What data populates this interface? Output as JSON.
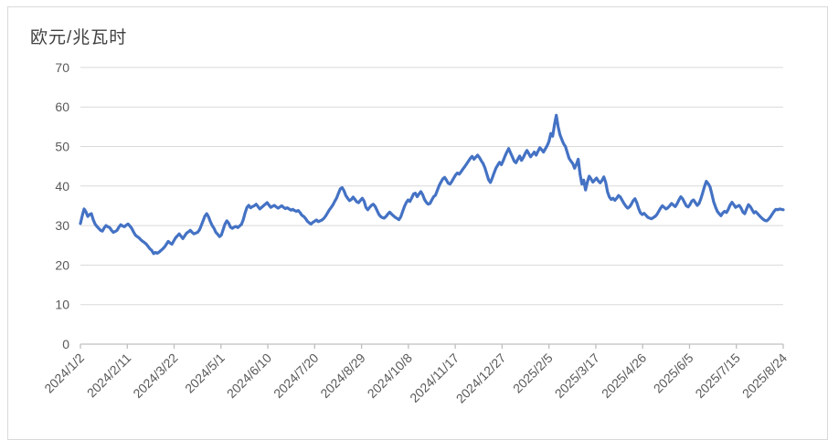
{
  "chart_data": {
    "type": "line",
    "title": "欧元/兆瓦时",
    "xlabel": "",
    "ylabel": "",
    "ylim": [
      0,
      70
    ],
    "y_ticks": [
      0,
      10,
      20,
      30,
      40,
      50,
      60,
      70
    ],
    "grid": true,
    "legend": "none",
    "x_labels": [
      "2024/1/2",
      "2024/2/11",
      "2024/3/22",
      "2024/5/1",
      "2024/6/10",
      "2024/7/20",
      "2024/8/29",
      "2024/10/8",
      "2024/11/17",
      "2024/12/27",
      "2025/2/5",
      "2025/3/17",
      "2025/4/26",
      "2025/6/5",
      "2025/7/15",
      "2025/8/24"
    ],
    "series": [
      {
        "name": "欧元/兆瓦时",
        "color": "#4472C4",
        "values": [
          30.5,
          32.5,
          34.2,
          33.5,
          32.3,
          32.8,
          33.0,
          31.5,
          30.4,
          29.8,
          29.3,
          28.8,
          28.6,
          29.4,
          30.0,
          29.7,
          29.5,
          28.8,
          28.3,
          28.5,
          28.8,
          29.6,
          30.2,
          29.9,
          29.7,
          30.1,
          30.4,
          29.9,
          29.3,
          28.4,
          27.6,
          27.2,
          26.9,
          26.4,
          26.0,
          25.7,
          25.3,
          24.7,
          24.1,
          23.7,
          22.9,
          23.2,
          23.0,
          23.3,
          23.7,
          24.1,
          24.6,
          25.3,
          26.0,
          25.6,
          25.3,
          26.1,
          26.9,
          27.4,
          27.9,
          27.3,
          26.7,
          27.4,
          28.1,
          28.4,
          28.8,
          28.3,
          27.9,
          28.1,
          28.3,
          28.9,
          30.0,
          31.2,
          32.4,
          33.0,
          32.2,
          31.0,
          30.0,
          29.3,
          28.3,
          27.8,
          27.2,
          27.6,
          29.0,
          30.4,
          31.2,
          30.6,
          29.6,
          29.3,
          29.6,
          29.8,
          29.5,
          29.9,
          30.3,
          31.5,
          33.2,
          34.6,
          35.1,
          34.5,
          34.8,
          35.0,
          35.4,
          34.8,
          34.2,
          34.6,
          35.0,
          35.4,
          35.8,
          35.2,
          34.6,
          34.9,
          35.1,
          34.7,
          34.4,
          34.7,
          35.0,
          34.6,
          34.3,
          34.5,
          34.2,
          33.9,
          34.1,
          33.8,
          33.6,
          33.8,
          33.3,
          32.6,
          32.3,
          31.8,
          31.1,
          30.7,
          30.4,
          30.8,
          31.1,
          31.4,
          31.0,
          31.2,
          31.4,
          31.8,
          32.4,
          33.2,
          34.0,
          34.6,
          35.3,
          36.2,
          37.0,
          38.2,
          39.3,
          39.6,
          38.8,
          37.6,
          36.9,
          36.3,
          36.6,
          37.2,
          36.6,
          36.0,
          35.8,
          36.4,
          36.9,
          36.2,
          34.6,
          34.0,
          34.6,
          35.1,
          35.4,
          34.9,
          33.9,
          32.9,
          32.3,
          32.0,
          31.9,
          32.3,
          32.9,
          33.4,
          32.9,
          32.5,
          32.1,
          31.8,
          31.5,
          32.2,
          33.5,
          34.8,
          35.8,
          36.5,
          36.1,
          37.0,
          38.0,
          38.2,
          37.3,
          38.0,
          38.6,
          37.8,
          36.6,
          35.9,
          35.4,
          35.6,
          36.5,
          37.3,
          37.7,
          38.9,
          40.1,
          41.0,
          41.8,
          42.2,
          41.5,
          40.7,
          40.5,
          41.2,
          42.0,
          42.8,
          43.3,
          43.0,
          43.6,
          44.3,
          44.9,
          45.6,
          46.3,
          47.0,
          47.5,
          46.8,
          47.3,
          47.8,
          47.2,
          46.4,
          45.7,
          44.6,
          43.1,
          41.6,
          40.9,
          42.0,
          43.3,
          44.5,
          45.3,
          46.0,
          45.4,
          46.4,
          47.6,
          48.6,
          49.5,
          48.4,
          47.4,
          46.3,
          45.9,
          46.8,
          47.6,
          46.5,
          47.2,
          48.2,
          49.0,
          48.2,
          47.4,
          48.0,
          48.6,
          47.8,
          48.8,
          49.7,
          49.2,
          48.6,
          49.4,
          50.2,
          51.3,
          53.3,
          52.6,
          55.5,
          57.9,
          55.0,
          53.0,
          51.8,
          50.7,
          50.0,
          48.5,
          47.0,
          46.3,
          45.7,
          44.5,
          45.5,
          46.8,
          43.0,
          40.5,
          41.5,
          39.0,
          41.0,
          42.5,
          41.8,
          41.0,
          41.5,
          42.0,
          41.3,
          40.8,
          41.4,
          42.3,
          41.0,
          38.5,
          37.2,
          36.6,
          36.9,
          36.4,
          36.9,
          37.6,
          37.2,
          36.4,
          35.6,
          34.9,
          34.4,
          34.7,
          35.4,
          36.3,
          36.8,
          35.8,
          34.3,
          33.2,
          32.8,
          33.1,
          32.6,
          32.1,
          31.9,
          31.7,
          32.0,
          32.3,
          32.8,
          33.6,
          34.4,
          35.0,
          34.6,
          34.2,
          34.5,
          35.0,
          35.6,
          35.2,
          34.8,
          35.5,
          36.5,
          37.3,
          36.8,
          35.9,
          35.0,
          34.7,
          35.3,
          36.2,
          36.5,
          35.8,
          35.1,
          35.6,
          36.8,
          38.3,
          39.9,
          41.2,
          40.6,
          39.8,
          38.0,
          36.0,
          34.7,
          33.6,
          33.0,
          32.5,
          33.2,
          33.6,
          33.3,
          34.1,
          35.2,
          35.9,
          35.3,
          34.6,
          34.9,
          35.1,
          34.4,
          33.4,
          33.0,
          34.2,
          35.3,
          34.8,
          34.0,
          33.2,
          33.5,
          33.0,
          32.5,
          32.0,
          31.6,
          31.3,
          31.2,
          31.6,
          32.2,
          32.9,
          33.6,
          34.1,
          34.0,
          34.2,
          34.1,
          34.0
        ]
      }
    ],
    "colors": {
      "line": "#4472C4",
      "gridline": "#d9d9d9",
      "axis_line": "#bfbfbf",
      "tick_label": "#595959",
      "title": "#404040"
    }
  }
}
